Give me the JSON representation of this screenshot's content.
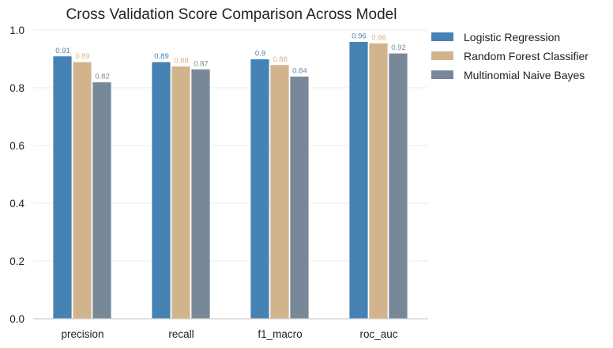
{
  "chart_data": {
    "type": "bar",
    "title": "Cross Validation Score Comparison Across Model",
    "xlabel": "",
    "ylabel": "",
    "categories": [
      "precision",
      "recall",
      "f1_macro",
      "roc_auc"
    ],
    "ylim": [
      0,
      1.0
    ],
    "yticks": [
      "0.0",
      "0.2",
      "0.4",
      "0.6",
      "0.8",
      "1.0"
    ],
    "grid": true,
    "legend_position": "outside-top-right",
    "series": [
      {
        "name": "Logistic Regression",
        "color": "#4682b4",
        "values": [
          0.91,
          0.89,
          0.9,
          0.96
        ],
        "labels": [
          "0.91",
          "0.89",
          "0.9",
          "0.96"
        ]
      },
      {
        "name": "Random Forest Classifier",
        "color": "#d2b48c",
        "values": [
          0.89,
          0.875,
          0.88,
          0.955
        ],
        "labels": [
          "0.89",
          "0.88",
          "0.88",
          "0.96"
        ]
      },
      {
        "name": "Multinomial Naive Bayes",
        "color": "#778899",
        "values": [
          0.82,
          0.865,
          0.84,
          0.92
        ],
        "labels": [
          "0.82",
          "0.87",
          "0.84",
          "0.92"
        ]
      }
    ]
  }
}
